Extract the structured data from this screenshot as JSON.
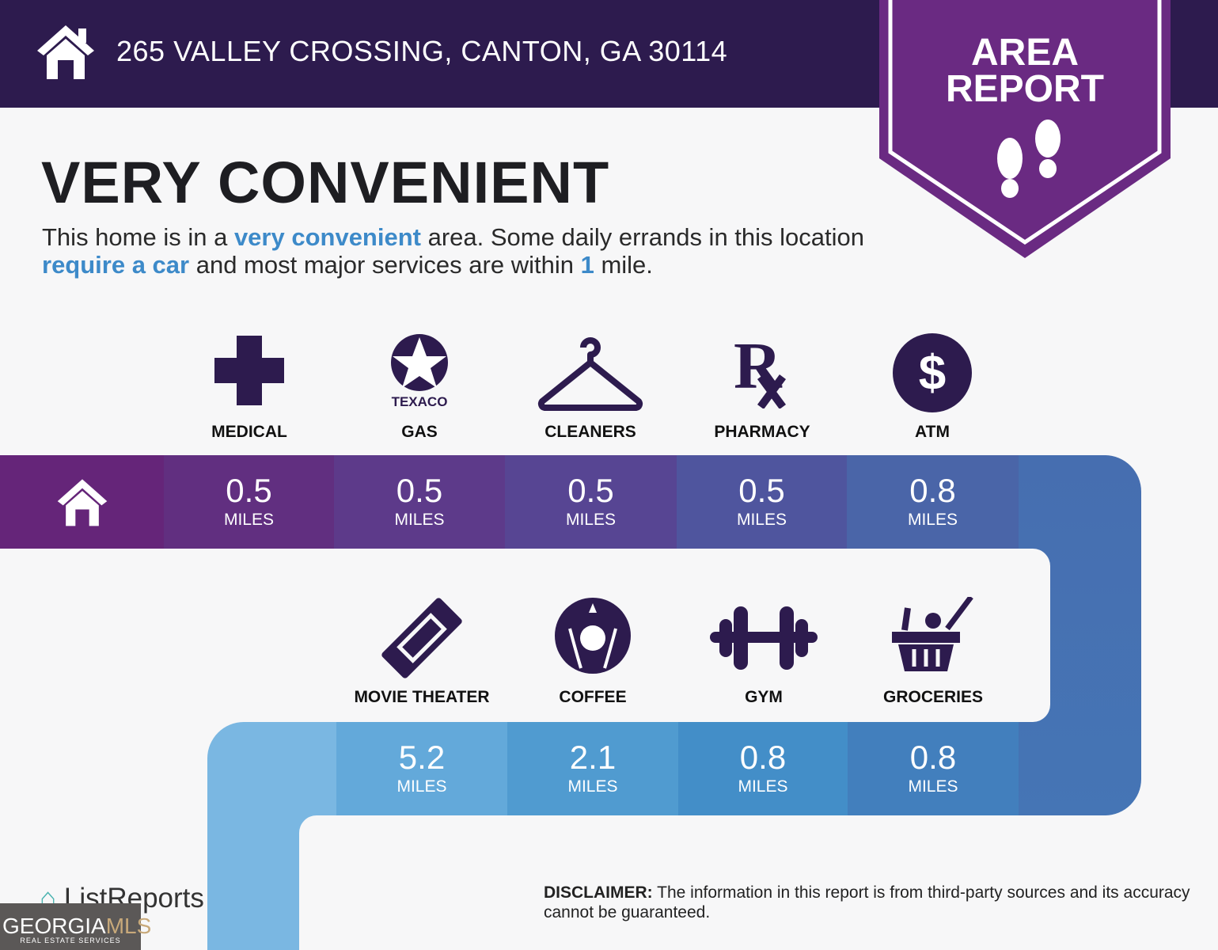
{
  "header": {
    "address": "265 VALLEY CROSSING, CANTON, GA 30114",
    "home_icon": "house-icon"
  },
  "badge": {
    "line1": "AREA",
    "line2": "REPORT",
    "icon": "footprints-icon",
    "color": "#6a2a82"
  },
  "title": "VERY CONVENIENT",
  "description": {
    "p1": "This home is in a ",
    "h1": "very convenient",
    "p2": " area. Some daily errands in this location ",
    "h2": "require a car",
    "p3": " and most major services are within ",
    "h3": "1",
    "p4": " mile."
  },
  "row1": [
    {
      "label": "MEDICAL",
      "icon": "medical-cross-icon",
      "distance": "0.5",
      "unit": "MILES"
    },
    {
      "label": "GAS",
      "icon": "texaco-logo-icon",
      "logo_text": "TEXACO",
      "distance": "0.5",
      "unit": "MILES"
    },
    {
      "label": "CLEANERS",
      "icon": "hanger-icon",
      "distance": "0.5",
      "unit": "MILES"
    },
    {
      "label": "PHARMACY",
      "icon": "rx-icon",
      "distance": "0.5",
      "unit": "MILES"
    },
    {
      "label": "ATM",
      "icon": "dollar-icon",
      "distance": "0.8",
      "unit": "MILES"
    }
  ],
  "row2": [
    {
      "label": "MOVIE THEATER",
      "icon": "ticket-icon",
      "distance": "5.2",
      "unit": "MILES"
    },
    {
      "label": "COFFEE",
      "icon": "starbucks-logo-icon",
      "distance": "2.1",
      "unit": "MILES"
    },
    {
      "label": "GYM",
      "icon": "dumbbell-icon",
      "distance": "0.8",
      "unit": "MILES"
    },
    {
      "label": "GROCERIES",
      "icon": "grocery-basket-icon",
      "distance": "0.8",
      "unit": "MILES"
    }
  ],
  "disclaimer": {
    "bold": "DISCLAIMER:",
    "text": " The information in this report is from third-party sources and its accuracy cannot be guaranteed."
  },
  "footer": {
    "brand": "ListReports",
    "watermark": "GEORGIAMLS",
    "watermark_sub": "REAL ESTATE SERVICES"
  }
}
